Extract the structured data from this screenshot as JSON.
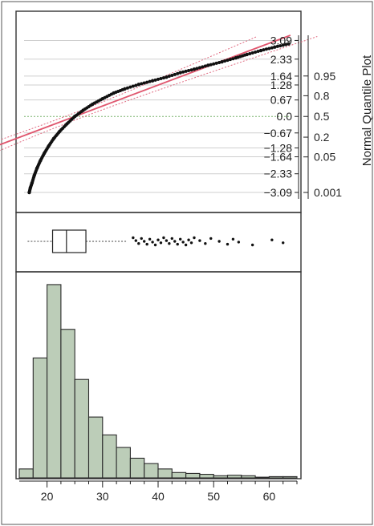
{
  "panel_labels": {
    "quantile_axis_title": "Normal Quantile Plot"
  },
  "chart_data": [
    {
      "type": "scatter",
      "panel": "normal-quantile",
      "x_range": [
        15,
        65
      ],
      "quantile_ticks": [
        -3.09,
        -2.33,
        -1.64,
        -1.28,
        -0.67,
        0.0,
        0.67,
        1.28,
        1.64,
        2.33,
        3.09
      ],
      "quantile_tick_labels": [
        "-3.09",
        "-2.33",
        "-1.64",
        "-1.28",
        "-0.67",
        "0.0",
        "0.67",
        "1.28",
        "1.64",
        "2.33",
        "3.09"
      ],
      "probability_ticks": [
        0.001,
        0.05,
        0.2,
        0.5,
        0.8,
        0.95
      ],
      "probability_tick_labels": [
        "0.001",
        "0.05",
        "0.2",
        "0.5",
        "0.8",
        "0.95"
      ],
      "ylim": [
        -3.35,
        3.3
      ],
      "series": [
        {
          "values": [
            [
              16.8,
              -3.09
            ],
            [
              17.0,
              -2.9
            ],
            [
              17.3,
              -2.7
            ],
            [
              17.7,
              -2.4
            ],
            [
              18.2,
              -2.1
            ],
            [
              18.8,
              -1.8
            ],
            [
              19.5,
              -1.5
            ],
            [
              20.3,
              -1.2
            ],
            [
              21.2,
              -0.9
            ],
            [
              22.3,
              -0.6
            ],
            [
              23.6,
              -0.3
            ],
            [
              25.0,
              0.0
            ],
            [
              26.5,
              0.25
            ],
            [
              28.2,
              0.5
            ],
            [
              30.0,
              0.72
            ],
            [
              32.0,
              0.95
            ],
            [
              34.0,
              1.12
            ],
            [
              36.5,
              1.3
            ],
            [
              39.0,
              1.45
            ],
            [
              41.5,
              1.6
            ],
            [
              44.0,
              1.78
            ],
            [
              46.5,
              1.92
            ],
            [
              49.0,
              2.08
            ],
            [
              51.5,
              2.22
            ],
            [
              54.0,
              2.38
            ],
            [
              56.0,
              2.52
            ],
            [
              58.5,
              2.68
            ],
            [
              61.0,
              2.82
            ],
            [
              63.5,
              2.95
            ]
          ]
        }
      ],
      "reference_line": {
        "intercept_x": 25.0,
        "slope": 0.085
      },
      "confidence_band": true
    },
    {
      "type": "box",
      "panel": "outlier-box",
      "x_range": [
        15,
        65
      ],
      "whisker_low": 16.5,
      "q1": 21.0,
      "median": 23.5,
      "q3": 27.0,
      "whisker_high": 34.5,
      "outliers": [
        35.5,
        36.0,
        36.5,
        37.0,
        37.5,
        38.0,
        38.5,
        39.0,
        39.5,
        40.0,
        40.5,
        41.0,
        41.5,
        42.0,
        42.5,
        43.0,
        43.5,
        44.0,
        44.5,
        45.0,
        45.5,
        46.0,
        46.5,
        47.5,
        48.5,
        49.5,
        51.0,
        52.5,
        53.5,
        54.5,
        57.0,
        60.5,
        62.5
      ]
    },
    {
      "type": "bar",
      "panel": "histogram",
      "xlabel": "",
      "ylabel": "",
      "x_range": [
        15,
        65
      ],
      "bin_edges": [
        15.0,
        17.5,
        20.0,
        22.5,
        25.0,
        27.5,
        30.0,
        32.5,
        35.0,
        37.5,
        40.0,
        42.5,
        45.0,
        47.5,
        50.0,
        52.5,
        55.0,
        57.5,
        60.0,
        62.5,
        65.0
      ],
      "values": [
        0.5,
        6.7,
        10.8,
        8.3,
        5.5,
        3.4,
        2.4,
        1.7,
        1.1,
        0.8,
        0.5,
        0.3,
        0.25,
        0.2,
        0.12,
        0.15,
        0.12,
        0.04,
        0.07,
        0.07
      ],
      "ylim": [
        0,
        11.2
      ],
      "x_ticks": [
        20,
        30,
        40,
        50,
        60
      ],
      "x_tick_labels": [
        "20",
        "30",
        "40",
        "50",
        "60"
      ],
      "colors": {
        "bar_fill": "#bccdb8",
        "bar_stroke": "#2a2a2a"
      }
    }
  ]
}
